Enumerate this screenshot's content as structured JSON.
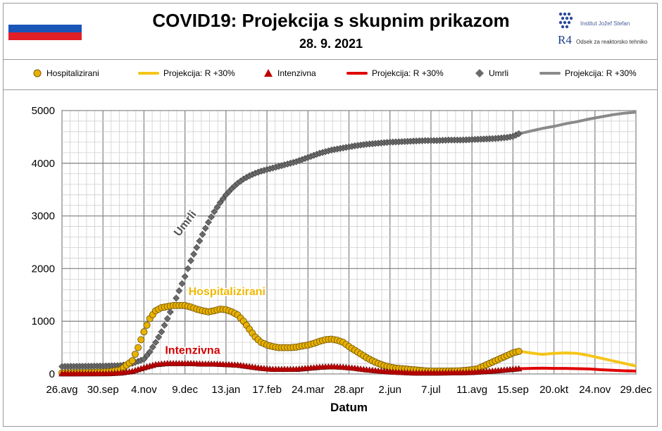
{
  "header": {
    "title": "COVID19: Projekcija  s skupnim prikazom",
    "date": "28. 9. 2021"
  },
  "logo": {
    "institute": "Institut Jožef Stefan",
    "r4": "R4",
    "department": "Odsek za reaktorsko tehniko"
  },
  "legend": [
    {
      "label": "Hospitalizirani",
      "kind": "marker-circle",
      "color": "#e8b200"
    },
    {
      "label": "Projekcija: R +30%",
      "kind": "line",
      "color": "#f5c518"
    },
    {
      "label": "Intenzivna",
      "kind": "marker-triangle",
      "color": "#c00000"
    },
    {
      "label": "Projekcija: R +30%",
      "kind": "line",
      "color": "#e00000"
    },
    {
      "label": "Umrli",
      "kind": "marker-diamond",
      "color": "#6a6a6a"
    },
    {
      "label": "Projekcija: R +30%",
      "kind": "line",
      "color": "#8a8a8a"
    }
  ],
  "chart_data": {
    "type": "line",
    "xlabel": "Datum",
    "ylabel": "",
    "ylim": [
      0,
      5000
    ],
    "y_ticks": [
      0,
      1000,
      2000,
      3000,
      4000,
      5000
    ],
    "x_unit": "days since 26.avg 2020",
    "xlim": [
      0,
      490
    ],
    "x_tick_days": [
      0,
      35,
      70,
      105,
      140,
      175,
      210,
      245,
      280,
      315,
      350,
      385,
      420,
      455,
      490
    ],
    "x_tick_labels": [
      "26.avg",
      "30.sep",
      "4.nov",
      "9.dec",
      "13.jan",
      "17.feb",
      "24.mar",
      "28.apr",
      "2.jun",
      "7.jul",
      "11.avg",
      "15.sep",
      "20.okt",
      "24.nov",
      "29.dec"
    ],
    "grid": true,
    "annotations": [
      {
        "text": "Umrli",
        "color": "#555555"
      },
      {
        "text": "Hospitalizirani",
        "color": "#f0b800"
      },
      {
        "text": "Intenzivna",
        "color": "#d00000"
      }
    ],
    "series": [
      {
        "name": "Hospitalizirani",
        "color": "#e8b200",
        "marker": "circle",
        "points": [
          [
            0,
            20
          ],
          [
            20,
            25
          ],
          [
            40,
            40
          ],
          [
            50,
            80
          ],
          [
            60,
            250
          ],
          [
            65,
            500
          ],
          [
            70,
            800
          ],
          [
            75,
            1050
          ],
          [
            80,
            1200
          ],
          [
            85,
            1260
          ],
          [
            90,
            1280
          ],
          [
            95,
            1300
          ],
          [
            100,
            1300
          ],
          [
            105,
            1300
          ],
          [
            110,
            1270
          ],
          [
            115,
            1230
          ],
          [
            120,
            1200
          ],
          [
            125,
            1180
          ],
          [
            130,
            1200
          ],
          [
            135,
            1230
          ],
          [
            140,
            1220
          ],
          [
            145,
            1180
          ],
          [
            150,
            1120
          ],
          [
            155,
            1000
          ],
          [
            160,
            850
          ],
          [
            165,
            700
          ],
          [
            170,
            600
          ],
          [
            175,
            550
          ],
          [
            180,
            520
          ],
          [
            185,
            500
          ],
          [
            190,
            500
          ],
          [
            195,
            500
          ],
          [
            200,
            510
          ],
          [
            205,
            530
          ],
          [
            210,
            550
          ],
          [
            215,
            580
          ],
          [
            220,
            620
          ],
          [
            225,
            650
          ],
          [
            230,
            660
          ],
          [
            235,
            640
          ],
          [
            240,
            600
          ],
          [
            245,
            520
          ],
          [
            250,
            450
          ],
          [
            255,
            380
          ],
          [
            260,
            310
          ],
          [
            265,
            250
          ],
          [
            270,
            200
          ],
          [
            275,
            160
          ],
          [
            280,
            130
          ],
          [
            285,
            110
          ],
          [
            290,
            100
          ],
          [
            295,
            90
          ],
          [
            300,
            80
          ],
          [
            305,
            70
          ],
          [
            310,
            60
          ],
          [
            315,
            55
          ],
          [
            320,
            55
          ],
          [
            330,
            55
          ],
          [
            340,
            60
          ],
          [
            350,
            80
          ],
          [
            355,
            100
          ],
          [
            360,
            150
          ],
          [
            365,
            200
          ],
          [
            370,
            250
          ],
          [
            375,
            300
          ],
          [
            380,
            350
          ],
          [
            385,
            400
          ],
          [
            390,
            430
          ]
        ]
      },
      {
        "name": "Projekcija: R +30% (Hospitalizirani)",
        "color": "#f5c518",
        "marker": "none",
        "points": [
          [
            390,
            430
          ],
          [
            400,
            400
          ],
          [
            410,
            370
          ],
          [
            420,
            390
          ],
          [
            430,
            400
          ],
          [
            440,
            390
          ],
          [
            450,
            350
          ],
          [
            460,
            300
          ],
          [
            470,
            250
          ],
          [
            480,
            200
          ],
          [
            490,
            150
          ]
        ]
      },
      {
        "name": "Intenzivna",
        "color": "#c00000",
        "marker": "triangle",
        "points": [
          [
            0,
            5
          ],
          [
            40,
            8
          ],
          [
            50,
            20
          ],
          [
            60,
            50
          ],
          [
            70,
            120
          ],
          [
            80,
            180
          ],
          [
            90,
            200
          ],
          [
            100,
            200
          ],
          [
            110,
            200
          ],
          [
            120,
            190
          ],
          [
            130,
            190
          ],
          [
            140,
            180
          ],
          [
            150,
            170
          ],
          [
            160,
            140
          ],
          [
            170,
            110
          ],
          [
            180,
            90
          ],
          [
            190,
            90
          ],
          [
            200,
            90
          ],
          [
            210,
            110
          ],
          [
            220,
            130
          ],
          [
            230,
            140
          ],
          [
            240,
            130
          ],
          [
            250,
            110
          ],
          [
            260,
            80
          ],
          [
            270,
            60
          ],
          [
            280,
            40
          ],
          [
            290,
            30
          ],
          [
            300,
            20
          ],
          [
            320,
            20
          ],
          [
            340,
            25
          ],
          [
            350,
            30
          ],
          [
            360,
            45
          ],
          [
            370,
            60
          ],
          [
            380,
            80
          ],
          [
            390,
            100
          ]
        ]
      },
      {
        "name": "Projekcija: R +30% (Intenzivna)",
        "color": "#e00000",
        "marker": "none",
        "points": [
          [
            390,
            100
          ],
          [
            400,
            105
          ],
          [
            410,
            110
          ],
          [
            420,
            105
          ],
          [
            430,
            105
          ],
          [
            440,
            100
          ],
          [
            450,
            95
          ],
          [
            460,
            80
          ],
          [
            470,
            70
          ],
          [
            480,
            60
          ],
          [
            490,
            55
          ]
        ]
      },
      {
        "name": "Umrli",
        "color": "#6a6a6a",
        "marker": "diamond",
        "points": [
          [
            0,
            140
          ],
          [
            20,
            145
          ],
          [
            35,
            150
          ],
          [
            50,
            160
          ],
          [
            60,
            200
          ],
          [
            70,
            280
          ],
          [
            75,
            420
          ],
          [
            80,
            600
          ],
          [
            85,
            800
          ],
          [
            90,
            1050
          ],
          [
            95,
            1300
          ],
          [
            100,
            1580
          ],
          [
            105,
            1850
          ],
          [
            110,
            2150
          ],
          [
            115,
            2400
          ],
          [
            120,
            2650
          ],
          [
            125,
            2880
          ],
          [
            130,
            3080
          ],
          [
            135,
            3250
          ],
          [
            140,
            3400
          ],
          [
            145,
            3520
          ],
          [
            150,
            3620
          ],
          [
            155,
            3700
          ],
          [
            160,
            3760
          ],
          [
            165,
            3810
          ],
          [
            170,
            3850
          ],
          [
            175,
            3880
          ],
          [
            180,
            3910
          ],
          [
            185,
            3940
          ],
          [
            190,
            3970
          ],
          [
            195,
            4000
          ],
          [
            200,
            4030
          ],
          [
            205,
            4070
          ],
          [
            210,
            4110
          ],
          [
            215,
            4150
          ],
          [
            220,
            4190
          ],
          [
            225,
            4220
          ],
          [
            230,
            4250
          ],
          [
            235,
            4270
          ],
          [
            240,
            4290
          ],
          [
            245,
            4310
          ],
          [
            250,
            4330
          ],
          [
            260,
            4360
          ],
          [
            270,
            4380
          ],
          [
            280,
            4400
          ],
          [
            290,
            4410
          ],
          [
            300,
            4420
          ],
          [
            310,
            4430
          ],
          [
            320,
            4430
          ],
          [
            330,
            4440
          ],
          [
            340,
            4440
          ],
          [
            350,
            4450
          ],
          [
            360,
            4460
          ],
          [
            370,
            4470
          ],
          [
            380,
            4490
          ],
          [
            385,
            4510
          ],
          [
            390,
            4560
          ]
        ]
      },
      {
        "name": "Projekcija: R +30% (Umrli)",
        "color": "#8a8a8a",
        "marker": "none",
        "points": [
          [
            390,
            4560
          ],
          [
            400,
            4610
          ],
          [
            410,
            4660
          ],
          [
            420,
            4700
          ],
          [
            430,
            4750
          ],
          [
            440,
            4790
          ],
          [
            450,
            4840
          ],
          [
            460,
            4880
          ],
          [
            470,
            4920
          ],
          [
            480,
            4950
          ],
          [
            490,
            4970
          ]
        ]
      }
    ]
  }
}
